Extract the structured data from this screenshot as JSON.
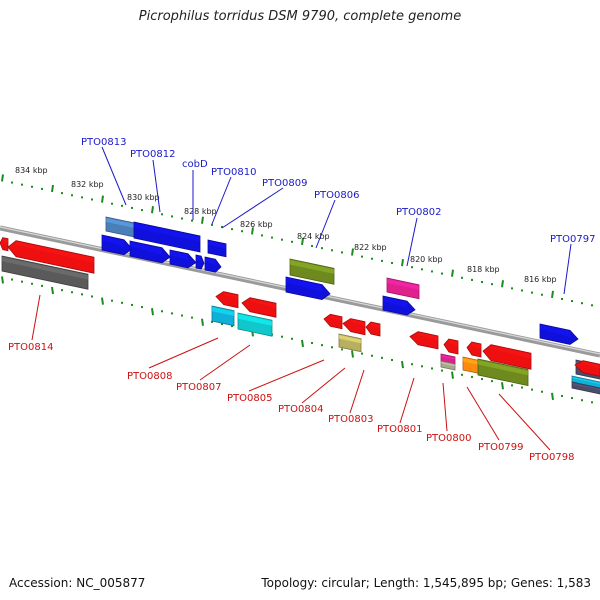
{
  "title": "Picrophilus torridus DSM 9790, complete genome",
  "footer": {
    "accession": "Accession: NC_005877",
    "topology": "Topology: circular; Length: 1,545,895 bp; Genes: 1,583"
  },
  "colors": {
    "forward_label": "#1a1acc",
    "reverse_label": "#cc1111",
    "tick": "#1f8a1f",
    "backbone": "#8a8a8a"
  },
  "scale_labels": [
    "834 kbp",
    "832 kbp",
    "830 kbp",
    "828 kbp",
    "826 kbp",
    "824 kbp",
    "822 kbp",
    "820 kbp",
    "818 kbp",
    "816 kbp"
  ],
  "forward_labels": [
    "PTO0813",
    "PTO0812",
    "cobD",
    "PTO0810",
    "PTO0809",
    "PTO0806",
    "PTO0802",
    "PTO0797"
  ],
  "reverse_labels": [
    "PTO0814",
    "PTO0808",
    "PTO0807",
    "PTO0805",
    "PTO0804",
    "PTO0803",
    "PTO0801",
    "PTO0800",
    "PTO0799",
    "PTO0798"
  ]
}
